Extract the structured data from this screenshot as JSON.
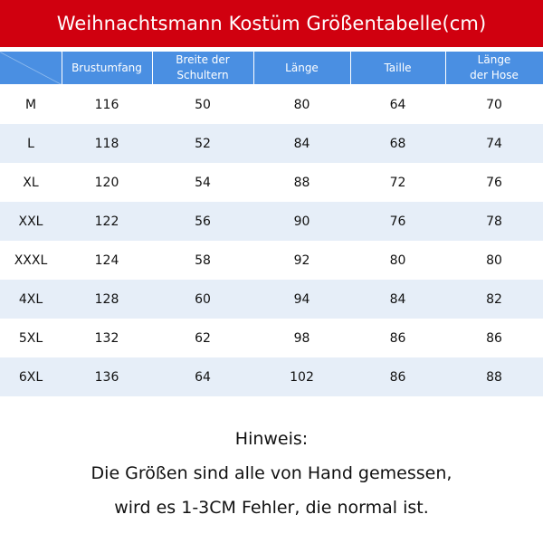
{
  "title": "Weihnachtsmann Kostüm Größentabelle(cm)",
  "table": {
    "headers": [
      {
        "line1": "Brustumfang",
        "line2": ""
      },
      {
        "line1": "Breite der",
        "line2": "Schultern"
      },
      {
        "line1": "Länge",
        "line2": ""
      },
      {
        "line1": "Taille",
        "line2": ""
      },
      {
        "line1": "Länge",
        "line2": "der Hose"
      }
    ],
    "rows": [
      [
        "M",
        "116",
        "50",
        "80",
        "64",
        "70"
      ],
      [
        "L",
        "118",
        "52",
        "84",
        "68",
        "74"
      ],
      [
        "XL",
        "120",
        "54",
        "88",
        "72",
        "76"
      ],
      [
        "XXL",
        "122",
        "56",
        "90",
        "76",
        "78"
      ],
      [
        "XXXL",
        "124",
        "58",
        "92",
        "80",
        "80"
      ],
      [
        "4XL",
        "128",
        "60",
        "94",
        "84",
        "82"
      ],
      [
        "5XL",
        "132",
        "62",
        "98",
        "86",
        "86"
      ],
      [
        "6XL",
        "136",
        "64",
        "102",
        "86",
        "88"
      ]
    ]
  },
  "note": {
    "heading": "Hinweis:",
    "line1": "Die Größen sind alle von Hand gemessen,",
    "line2": "wird es 1-3CM Fehler, die normal ist."
  },
  "colors": {
    "title_bg": "#d0000f",
    "header_bg": "#4a8fe2",
    "stripe_bg": "#e6eef8"
  }
}
